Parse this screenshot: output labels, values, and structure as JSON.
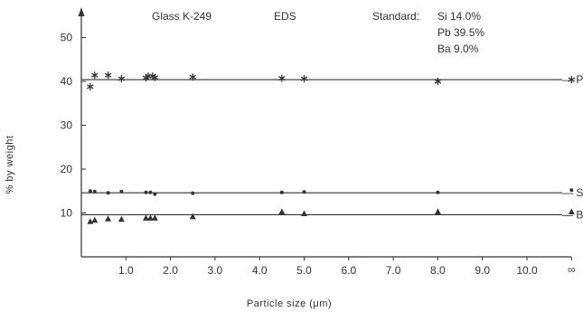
{
  "chart_data": {
    "type": "scatter",
    "title": "Glass K-249",
    "method": "EDS",
    "standard": {
      "label": "Standard:",
      "lines": [
        "Si 14.0%",
        "Pb 39.5%",
        "Ba 9.0%"
      ]
    },
    "xlabel": "Particle size (μm)",
    "ylabel": "% by weight",
    "xlim": [
      0,
      11
    ],
    "ylim": [
      0,
      58
    ],
    "x_ticks": [
      {
        "value": 1.0,
        "label": "1.0"
      },
      {
        "value": 2.0,
        "label": "2.0"
      },
      {
        "value": 3.0,
        "label": "3.0"
      },
      {
        "value": 4.0,
        "label": "4.0"
      },
      {
        "value": 5.0,
        "label": "5.0"
      },
      {
        "value": 6.0,
        "label": "6.0"
      },
      {
        "value": 7.0,
        "label": "7.0"
      },
      {
        "value": 8.0,
        "label": "8.0"
      },
      {
        "value": 9.0,
        "label": "9.0"
      },
      {
        "value": 10.0,
        "label": "10.0"
      },
      {
        "value": 11.0,
        "label": "∞"
      }
    ],
    "y_ticks": [
      {
        "value": 10,
        "label": "10"
      },
      {
        "value": 20,
        "label": "20"
      },
      {
        "value": 30,
        "label": "30"
      },
      {
        "value": 40,
        "label": "40"
      },
      {
        "value": 50,
        "label": "50"
      }
    ],
    "grid": false,
    "series": [
      {
        "name": "Pb",
        "marker": "asterisk",
        "reference": 40.4,
        "points": [
          {
            "x": 0.2,
            "y": 38.8
          },
          {
            "x": 0.3,
            "y": 41.4
          },
          {
            "x": 0.6,
            "y": 41.4
          },
          {
            "x": 0.9,
            "y": 40.6
          },
          {
            "x": 1.45,
            "y": 40.8
          },
          {
            "x": 1.5,
            "y": 41.2
          },
          {
            "x": 1.6,
            "y": 41.2
          },
          {
            "x": 1.65,
            "y": 40.9
          },
          {
            "x": 2.5,
            "y": 41.0
          },
          {
            "x": 4.5,
            "y": 40.7
          },
          {
            "x": 5.0,
            "y": 40.6
          },
          {
            "x": 8.0,
            "y": 40.0
          },
          {
            "x": 11.0,
            "y": 40.4
          }
        ]
      },
      {
        "name": "Si",
        "marker": "circle",
        "reference": 14.6,
        "points": [
          {
            "x": 0.2,
            "y": 15.0
          },
          {
            "x": 0.3,
            "y": 14.9
          },
          {
            "x": 0.6,
            "y": 14.6
          },
          {
            "x": 0.9,
            "y": 14.9
          },
          {
            "x": 1.45,
            "y": 14.7
          },
          {
            "x": 1.55,
            "y": 14.7
          },
          {
            "x": 1.65,
            "y": 14.3
          },
          {
            "x": 2.5,
            "y": 14.5
          },
          {
            "x": 4.5,
            "y": 14.7
          },
          {
            "x": 5.0,
            "y": 14.8
          },
          {
            "x": 8.0,
            "y": 14.7
          },
          {
            "x": 11.0,
            "y": 15.2
          }
        ]
      },
      {
        "name": "Ba",
        "marker": "triangle",
        "reference": 9.6,
        "points": [
          {
            "x": 0.2,
            "y": 8.0
          },
          {
            "x": 0.3,
            "y": 8.3
          },
          {
            "x": 0.6,
            "y": 8.6
          },
          {
            "x": 0.9,
            "y": 8.5
          },
          {
            "x": 1.45,
            "y": 8.8
          },
          {
            "x": 1.55,
            "y": 8.8
          },
          {
            "x": 1.65,
            "y": 8.8
          },
          {
            "x": 2.5,
            "y": 9.1
          },
          {
            "x": 4.5,
            "y": 10.2
          },
          {
            "x": 5.0,
            "y": 9.8
          },
          {
            "x": 8.0,
            "y": 10.2
          },
          {
            "x": 11.0,
            "y": 10.2
          }
        ]
      }
    ]
  }
}
